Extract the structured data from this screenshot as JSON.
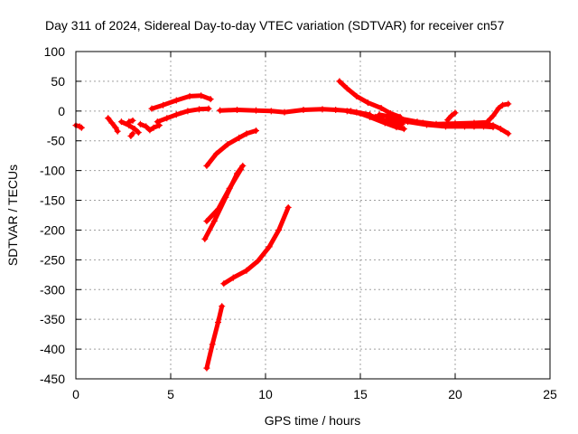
{
  "chart_data": {
    "type": "scatter",
    "title": "Day 311 of 2024, Sidereal Day-to-day VTEC variation (SDTVAR) for receiver cn57",
    "xlabel": "GPS time / hours",
    "ylabel": "SDTVAR / TECUs",
    "xlim": [
      0,
      25
    ],
    "ylim": [
      -450,
      100
    ],
    "x_ticks": [
      0,
      5,
      10,
      15,
      20,
      25
    ],
    "y_ticks": [
      -450,
      -400,
      -350,
      -300,
      -250,
      -200,
      -150,
      -100,
      -50,
      0,
      50,
      100
    ],
    "grid": true,
    "marker": "+",
    "color": "#ff0000",
    "series": [
      {
        "points": [
          [
            0.0,
            -24
          ],
          [
            0.2,
            -26
          ],
          [
            0.3,
            -28
          ]
        ]
      },
      {
        "points": [
          [
            1.7,
            -12
          ],
          [
            1.9,
            -20
          ],
          [
            2.1,
            -28
          ],
          [
            2.2,
            -34
          ]
        ]
      },
      {
        "points": [
          [
            2.4,
            -18
          ],
          [
            2.8,
            -24
          ],
          [
            3.1,
            -30
          ],
          [
            3.3,
            -36
          ]
        ]
      },
      {
        "points": [
          [
            3.4,
            -22
          ],
          [
            3.7,
            -26
          ],
          [
            3.9,
            -32
          ],
          [
            4.1,
            -28
          ],
          [
            4.4,
            -24
          ]
        ]
      },
      {
        "points": [
          [
            2.9,
            -42
          ],
          [
            3.0,
            -38
          ]
        ]
      },
      {
        "points": [
          [
            2.8,
            -18
          ],
          [
            3.0,
            -16
          ]
        ]
      },
      {
        "points": [
          [
            4.0,
            4
          ],
          [
            4.6,
            10
          ],
          [
            5.3,
            18
          ],
          [
            6.0,
            25
          ],
          [
            6.6,
            26
          ],
          [
            7.1,
            20
          ]
        ]
      },
      {
        "points": [
          [
            4.3,
            -18
          ],
          [
            4.8,
            -12
          ],
          [
            5.3,
            -6
          ],
          [
            5.9,
            0
          ],
          [
            6.5,
            3
          ],
          [
            7.0,
            4
          ]
        ]
      },
      {
        "points": [
          [
            6.9,
            -92
          ],
          [
            7.4,
            -72
          ],
          [
            8.0,
            -56
          ],
          [
            8.6,
            -45
          ],
          [
            9.0,
            -38
          ],
          [
            9.5,
            -33
          ]
        ]
      },
      {
        "points": [
          [
            6.8,
            -215
          ],
          [
            7.3,
            -185
          ],
          [
            7.9,
            -145
          ],
          [
            8.5,
            -105
          ],
          [
            8.8,
            -92
          ]
        ]
      },
      {
        "points": [
          [
            6.9,
            -185
          ],
          [
            7.5,
            -165
          ],
          [
            8.1,
            -130
          ],
          [
            8.7,
            -98
          ]
        ]
      },
      {
        "points": [
          [
            6.9,
            -432
          ],
          [
            7.2,
            -392
          ],
          [
            7.5,
            -355
          ],
          [
            7.7,
            -328
          ]
        ]
      },
      {
        "points": [
          [
            7.8,
            -290
          ],
          [
            8.3,
            -280
          ],
          [
            9.0,
            -268
          ],
          [
            9.6,
            -252
          ],
          [
            10.2,
            -228
          ],
          [
            10.7,
            -200
          ],
          [
            11.2,
            -162
          ]
        ]
      },
      {
        "points": [
          [
            7.6,
            1
          ],
          [
            8.5,
            2
          ],
          [
            9.5,
            1
          ],
          [
            10.3,
            0
          ],
          [
            11.0,
            -2
          ],
          [
            12.0,
            2
          ],
          [
            13.0,
            3
          ],
          [
            13.7,
            2
          ],
          [
            14.5,
            0
          ],
          [
            15.5,
            -6
          ]
        ]
      },
      {
        "points": [
          [
            13.9,
            50
          ],
          [
            14.3,
            38
          ],
          [
            14.8,
            25
          ],
          [
            15.4,
            14
          ],
          [
            16.1,
            5
          ],
          [
            16.6,
            -4
          ],
          [
            17.1,
            -10
          ]
        ]
      },
      {
        "points": [
          [
            14.3,
            0
          ],
          [
            15.0,
            -4
          ],
          [
            15.8,
            -10
          ],
          [
            16.5,
            -18
          ],
          [
            17.2,
            -22
          ]
        ]
      },
      {
        "points": [
          [
            14.8,
            -2
          ],
          [
            15.5,
            -10
          ],
          [
            16.3,
            -20
          ],
          [
            16.9,
            -27
          ],
          [
            17.3,
            -30
          ]
        ]
      },
      {
        "points": [
          [
            16.0,
            -6
          ],
          [
            17.0,
            -12
          ],
          [
            18.0,
            -18
          ],
          [
            19.0,
            -22
          ],
          [
            20.0,
            -21
          ],
          [
            21.0,
            -20
          ],
          [
            21.7,
            -19
          ]
        ]
      },
      {
        "points": [
          [
            16.5,
            -12
          ],
          [
            17.5,
            -18
          ],
          [
            18.5,
            -23
          ],
          [
            19.5,
            -26
          ],
          [
            20.5,
            -26
          ],
          [
            21.5,
            -26
          ],
          [
            22.0,
            -27
          ]
        ]
      },
      {
        "points": [
          [
            17.3,
            -16
          ],
          [
            18.3,
            -20
          ],
          [
            19.3,
            -24
          ],
          [
            20.0,
            -22
          ]
        ]
      },
      {
        "points": [
          [
            19.6,
            -15
          ],
          [
            19.8,
            -8
          ],
          [
            20.0,
            -3
          ]
        ]
      },
      {
        "points": [
          [
            20.5,
            -24
          ],
          [
            21.0,
            -26
          ],
          [
            21.5,
            -22
          ],
          [
            22.0,
            -24
          ],
          [
            22.4,
            -30
          ],
          [
            22.8,
            -38
          ]
        ]
      },
      {
        "points": [
          [
            21.7,
            -18
          ],
          [
            22.0,
            -8
          ],
          [
            22.3,
            5
          ],
          [
            22.5,
            10
          ],
          [
            22.8,
            12
          ]
        ]
      }
    ]
  }
}
